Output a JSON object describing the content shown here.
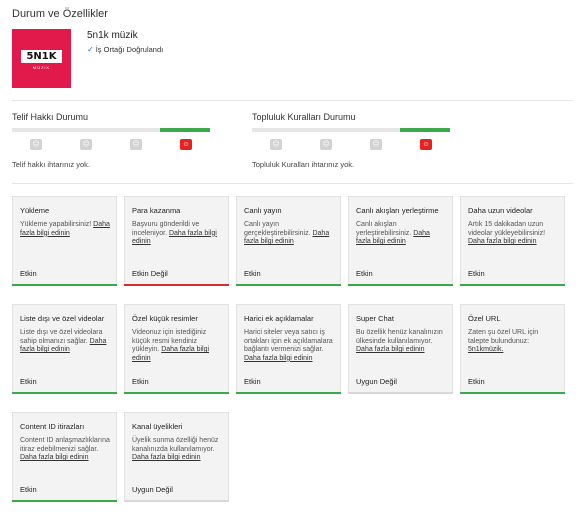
{
  "page": {
    "title": "Durum ve Özellikler"
  },
  "channel": {
    "logo_text": "5N1K",
    "logo_sub": "MÜZİK",
    "name": "5n1k müzik",
    "verified_icon": "check-icon",
    "verified_label": "İş Ortağı Doğrulandı"
  },
  "copyright": {
    "title": "Telif Hakkı Durumu",
    "text": "Telif hakkı ihtarınız yok.",
    "level_active_index": 3,
    "level_count": 4
  },
  "community": {
    "title": "Topluluk Kuralları Durumu",
    "text": "Topluluk Kuralları ihtarınız yok.",
    "level_active_index": 3,
    "level_count": 4
  },
  "features": [
    {
      "title": "Yükleme",
      "desc": "Yükleme yapabilirsiniz!",
      "link": "Daha fazla bilgi edinin",
      "status": "Etkin",
      "state": "enabled"
    },
    {
      "title": "Para kazanma",
      "desc": "Başvuru gönderildi ve inceleniyor.",
      "link": "Daha fazla bilgi edinin",
      "status": "Etkin Değil",
      "state": "disabled"
    },
    {
      "title": "Canlı yayın",
      "desc": "Canlı yayın gerçekleştirebilirsiniz.",
      "link": "Daha fazla bilgi edinin",
      "status": "Etkin",
      "state": "enabled"
    },
    {
      "title": "Canlı akışları yerleştirme",
      "desc": "Canlı akışları yerleştirebilirsiniz.",
      "link": "Daha fazla bilgi edinin",
      "status": "Etkin",
      "state": "enabled"
    },
    {
      "title": "Daha uzun videolar",
      "desc": "Artık 15 dakikadan uzun videolar yükleyebilirsiniz!",
      "link": "Daha fazla bilgi edinin",
      "status": "Etkin",
      "state": "enabled"
    },
    {
      "title": "Liste dışı ve özel videolar",
      "desc": "Liste dışı ve özel videolara sahip olmanızı sağlar.",
      "link": "Daha fazla bilgi edinin",
      "status": "Etkin",
      "state": "enabled"
    },
    {
      "title": "Özel küçük resimler",
      "desc": "Videonuz için istediğiniz küçük resmi kendiniz yükleyin.",
      "link": "Daha fazla bilgi edinin",
      "status": "Etkin",
      "state": "enabled"
    },
    {
      "title": "Harici ek açıklamalar",
      "desc": "Harici siteler veya satıcı iş ortakları için ek açıklamalara bağlantı vermenizi sağlar.",
      "link": "Daha fazla bilgi edinin",
      "status": "Etkin",
      "state": "enabled"
    },
    {
      "title": "Super Chat",
      "desc": "Bu özellik henüz kanalınızın ülkesinde kullanılamıyor.",
      "link": "Daha fazla bilgi edinin",
      "status": "Uygun Değil",
      "state": "na"
    },
    {
      "title": "Özel URL",
      "desc": "Zaten şu özel URL için talepte bulundunuz:",
      "link": "5n1kmüzik.",
      "status": "Etkin",
      "state": "enabled"
    },
    {
      "title": "Content ID itirazları",
      "desc": "Content ID anlaşmazlıklarına itiraz edebilmenizi sağlar.",
      "link": "Daha fazla bilgi edinin",
      "status": "Etkin",
      "state": "enabled"
    },
    {
      "title": "Kanal üyelikleri",
      "desc": "Üyelik sunma özelliği henüz kanalınızda kullanılamıyor.",
      "link": "Daha fazla bilgi edinin",
      "status": "Uygun Değil",
      "state": "na"
    }
  ]
}
